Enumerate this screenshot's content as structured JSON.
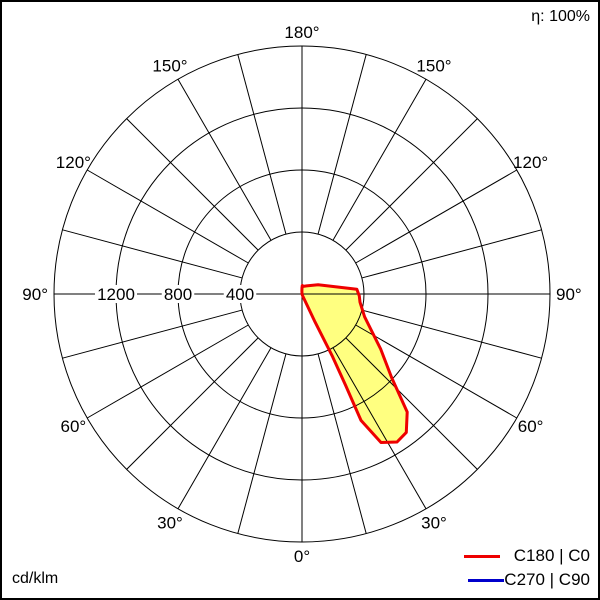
{
  "chart_data": {
    "type": "polar",
    "title": "",
    "efficiency_label": "η: 100%",
    "unit_label": "cd/klm",
    "radial_ticks": [
      400,
      800,
      1200
    ],
    "radial_tick_labels": [
      "400",
      "800",
      "1200"
    ],
    "radial_max": 1600,
    "angle_step_deg": 15,
    "angle_labels": [
      {
        "angle": 0,
        "text": "0°"
      },
      {
        "angle": 30,
        "text": "30°"
      },
      {
        "angle": -30,
        "text": "30°"
      },
      {
        "angle": 60,
        "text": "60°"
      },
      {
        "angle": -60,
        "text": "60°"
      },
      {
        "angle": 90,
        "text": "90°"
      },
      {
        "angle": -90,
        "text": "90°"
      },
      {
        "angle": 120,
        "text": "120°"
      },
      {
        "angle": -120,
        "text": "120°"
      },
      {
        "angle": 150,
        "text": "150°"
      },
      {
        "angle": -150,
        "text": "150°"
      },
      {
        "angle": 180,
        "text": "180°"
      }
    ],
    "grid": true,
    "legend_position": "bottom-right",
    "series": [
      {
        "name": "C180 | C0",
        "color": "#ee0000",
        "fill": "#ffff80",
        "points": [
          [
            0,
            0
          ],
          [
            20,
            10
          ],
          [
            25,
            200
          ],
          [
            26,
            450
          ],
          [
            25.5,
            650
          ],
          [
            25,
            900
          ],
          [
            28,
            1085
          ],
          [
            32.7,
            1135
          ],
          [
            37,
            1118
          ],
          [
            41.7,
            1020
          ],
          [
            47,
            790
          ],
          [
            55,
            620
          ],
          [
            61.5,
            515
          ],
          [
            70,
            430
          ],
          [
            82,
            378
          ],
          [
            88,
            370
          ],
          [
            95,
            355
          ],
          [
            120,
            120
          ],
          [
            150,
            60
          ],
          [
            170,
            50
          ],
          [
            178,
            55
          ],
          [
            180,
            40
          ],
          [
            182,
            20
          ],
          [
            181,
            5
          ]
        ]
      },
      {
        "name": "C270 | C90",
        "color": "#0000cc",
        "points": []
      }
    ]
  }
}
